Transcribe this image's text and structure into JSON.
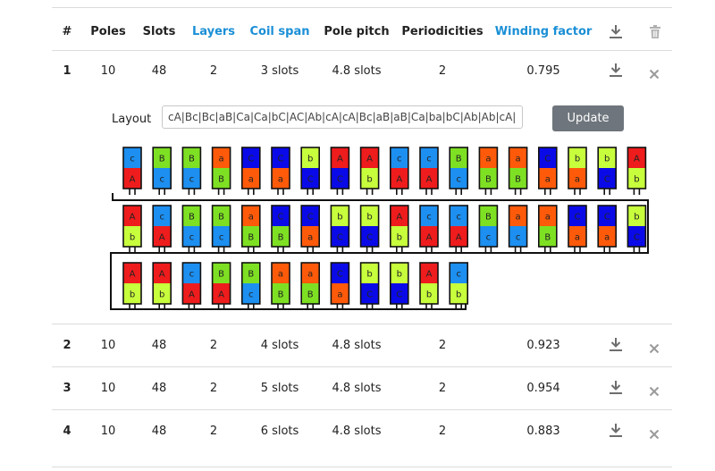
{
  "header": {
    "index": "#",
    "poles": "Poles",
    "slots": "Slots",
    "layers": "Layers",
    "coil_span": "Coil span",
    "pole_pitch": "Pole pitch",
    "periodicities": "Periodicities",
    "winding_factor": "Winding factor"
  },
  "rows": [
    {
      "index": "1",
      "poles": "10",
      "slots": "48",
      "layers": "2",
      "coil_span": "3 slots",
      "pole_pitch": "4.8 slots",
      "periodicities": "2",
      "winding_factor": "0.795"
    },
    {
      "index": "2",
      "poles": "10",
      "slots": "48",
      "layers": "2",
      "coil_span": "4 slots",
      "pole_pitch": "4.8 slots",
      "periodicities": "2",
      "winding_factor": "0.923"
    },
    {
      "index": "3",
      "poles": "10",
      "slots": "48",
      "layers": "2",
      "coil_span": "5 slots",
      "pole_pitch": "4.8 slots",
      "periodicities": "2",
      "winding_factor": "0.954"
    },
    {
      "index": "4",
      "poles": "10",
      "slots": "48",
      "layers": "2",
      "coil_span": "6 slots",
      "pole_pitch": "4.8 slots",
      "periodicities": "2",
      "winding_factor": "0.883"
    }
  ],
  "layout_editor": {
    "label": "Layout",
    "value": "cA|Bc|Bc|aB|Ca|Ca|bC|AC|Ab|cA|cA|Bc|aB|aB|Ca|ba|bC|Ab|Ab|cA|Bc|B",
    "update_label": "Update"
  },
  "winding_diagram": {
    "rows": [
      [
        [
          "c",
          "A"
        ],
        [
          "B",
          "c"
        ],
        [
          "B",
          "c"
        ],
        [
          "a",
          "B"
        ],
        [
          "C",
          "a"
        ],
        [
          "C",
          "a"
        ],
        [
          "b",
          "C"
        ],
        [
          "A",
          "C"
        ],
        [
          "A",
          "b"
        ],
        [
          "c",
          "A"
        ],
        [
          "c",
          "A"
        ],
        [
          "B",
          "c"
        ],
        [
          "a",
          "B"
        ],
        [
          "a",
          "B"
        ],
        [
          "C",
          "a"
        ],
        [
          "b",
          "a"
        ],
        [
          "b",
          "C"
        ],
        [
          "A",
          "b"
        ]
      ],
      [
        [
          "A",
          "b"
        ],
        [
          "c",
          "A"
        ],
        [
          "B",
          "c"
        ],
        [
          "B",
          "c"
        ],
        [
          "a",
          "B"
        ],
        [
          "C",
          "B"
        ],
        [
          "C",
          "a"
        ],
        [
          "b",
          "C"
        ],
        [
          "b",
          "C"
        ],
        [
          "A",
          "b"
        ],
        [
          "c",
          "A"
        ],
        [
          "c",
          "A"
        ],
        [
          "B",
          "c"
        ],
        [
          "a",
          "c"
        ],
        [
          "a",
          "B"
        ],
        [
          "C",
          "a"
        ],
        [
          "C",
          "a"
        ],
        [
          "b",
          "C"
        ]
      ],
      [
        [
          "A",
          "b"
        ],
        [
          "A",
          "b"
        ],
        [
          "c",
          "A"
        ],
        [
          "B",
          "A"
        ],
        [
          "B",
          "c"
        ],
        [
          "a",
          "B"
        ],
        [
          "a",
          "B"
        ],
        [
          "C",
          "a"
        ],
        [
          "b",
          "C"
        ],
        [
          "b",
          "C"
        ],
        [
          "A",
          "b"
        ],
        [
          "c",
          "b"
        ]
      ]
    ],
    "phase_colors": {
      "A": "#ee1c1c",
      "a": "#ff5a0a",
      "B": "#7ee023",
      "b": "#c8ff3c",
      "C": "#0a0ae8",
      "c": "#1c8ff0"
    }
  }
}
